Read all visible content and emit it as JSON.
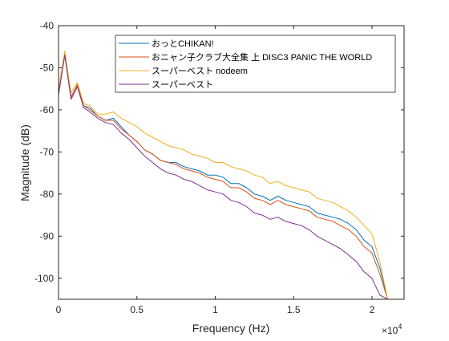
{
  "chart_data": {
    "type": "line",
    "title": "",
    "xlabel": "Frequency (Hz)",
    "ylabel": "Magnitude (dB)",
    "xlim": [
      0,
      22050
    ],
    "ylim": [
      -105,
      -40
    ],
    "x_ticks": [
      0,
      5000,
      10000,
      15000,
      20000
    ],
    "x_tick_labels": [
      "0",
      "0.5",
      "1",
      "1.5",
      "2"
    ],
    "x_exponent": "×10",
    "x_exponent_power": "4",
    "y_ticks": [
      -40,
      -50,
      -60,
      -70,
      -80,
      -90,
      -100
    ],
    "y_tick_labels": [
      "-40",
      "-50",
      "-60",
      "-70",
      "-80",
      "-90",
      "-100"
    ],
    "grid": false,
    "legend_position": "top-right",
    "series": [
      {
        "name": "おっとCHIKAN!",
        "color": "#0072BD",
        "x": [
          0,
          400,
          800,
          1200,
          1600,
          2000,
          2500,
          3000,
          3500,
          4000,
          4500,
          5000,
          5500,
          6000,
          6500,
          7000,
          7500,
          8000,
          8500,
          9000,
          9500,
          10000,
          10500,
          11000,
          11500,
          12000,
          12500,
          13000,
          13500,
          14000,
          14500,
          15000,
          15500,
          16000,
          16500,
          17000,
          17500,
          18000,
          18500,
          19000,
          19500,
          20000,
          20500,
          21000
        ],
        "y": [
          -56,
          -47,
          -57,
          -54,
          -59,
          -59.5,
          -61.5,
          -62.5,
          -62,
          -64,
          -66,
          -67.5,
          -69.5,
          -70.5,
          -72,
          -72.5,
          -72.5,
          -73.5,
          -74,
          -74.5,
          -75.5,
          -75.5,
          -76,
          -77.5,
          -77.5,
          -78.5,
          -80,
          -80.5,
          -81.5,
          -80.5,
          -81.5,
          -82,
          -82.5,
          -83,
          -84.5,
          -85,
          -85.5,
          -86,
          -87,
          -88.5,
          -91,
          -92.5,
          -97.5,
          -105
        ]
      },
      {
        "name": "おニャン子クラブ大全集 上 DISC3 PANIC THE WORLD",
        "color": "#D95319",
        "x": [
          0,
          400,
          800,
          1200,
          1600,
          2000,
          2500,
          3000,
          3500,
          4000,
          4500,
          5000,
          5500,
          6000,
          6500,
          7000,
          7500,
          8000,
          8500,
          9000,
          9500,
          10000,
          10500,
          11000,
          11500,
          12000,
          12500,
          13000,
          13500,
          14000,
          14500,
          15000,
          15500,
          16000,
          16500,
          17000,
          17500,
          18000,
          18500,
          19000,
          19500,
          20000,
          20500,
          21000
        ],
        "y": [
          -56,
          -46.5,
          -57,
          -54,
          -59,
          -60,
          -61.5,
          -62.5,
          -62.5,
          -64.5,
          -66,
          -67.5,
          -69.5,
          -70.5,
          -72,
          -72.5,
          -73,
          -74,
          -74.5,
          -75,
          -76,
          -76.5,
          -77,
          -78.5,
          -78.5,
          -79.5,
          -81,
          -81.5,
          -82.5,
          -81.5,
          -82.5,
          -83,
          -83.5,
          -84,
          -85.5,
          -86,
          -86.5,
          -87.5,
          -88.5,
          -90,
          -92.5,
          -94,
          -99,
          -105
        ]
      },
      {
        "name": "スーパーベスト nodeem",
        "color": "#EDB120",
        "x": [
          0,
          400,
          800,
          1200,
          1600,
          2000,
          2500,
          3000,
          3500,
          4000,
          4500,
          5000,
          5500,
          6000,
          6500,
          7000,
          7500,
          8000,
          8500,
          9000,
          9500,
          10000,
          10500,
          11000,
          11500,
          12000,
          12500,
          13000,
          13500,
          14000,
          14500,
          15000,
          15500,
          16000,
          16500,
          17000,
          17500,
          18000,
          18500,
          19000,
          19500,
          20000,
          20500,
          21000
        ],
        "y": [
          -55,
          -46,
          -56,
          -53.5,
          -58.5,
          -59,
          -61,
          -61,
          -60.5,
          -62,
          -63,
          -64,
          -65.5,
          -66.5,
          -67.5,
          -68.5,
          -69,
          -69.5,
          -70.5,
          -71,
          -71.5,
          -72.5,
          -72.5,
          -73.5,
          -74,
          -74.5,
          -75.5,
          -76,
          -77.5,
          -77,
          -78,
          -78.5,
          -79,
          -79.5,
          -81,
          -81.5,
          -82,
          -83,
          -84,
          -85.5,
          -87.5,
          -89.5,
          -96,
          -105
        ]
      },
      {
        "name": "スーパーベスト",
        "color": "#7E2F8E",
        "x": [
          0,
          400,
          800,
          1200,
          1600,
          2000,
          2500,
          3000,
          3500,
          4000,
          4500,
          5000,
          5500,
          6000,
          6500,
          7000,
          7500,
          8000,
          8500,
          9000,
          9500,
          10000,
          10500,
          11000,
          11500,
          12000,
          12500,
          13000,
          13500,
          14000,
          14500,
          15000,
          15500,
          16000,
          16500,
          17000,
          17500,
          18000,
          18500,
          19000,
          19500,
          20000,
          20500,
          21000
        ],
        "y": [
          -56.5,
          -47,
          -57.5,
          -54.5,
          -59.5,
          -60.5,
          -62,
          -63,
          -63.5,
          -65.5,
          -67,
          -69,
          -71,
          -72.5,
          -74,
          -75,
          -75.5,
          -76.5,
          -77,
          -78,
          -79,
          -79.5,
          -80,
          -81.5,
          -82,
          -83,
          -84.5,
          -85,
          -86,
          -85.5,
          -86.5,
          -87,
          -87.5,
          -88.5,
          -90,
          -91,
          -92,
          -93,
          -94.5,
          -96,
          -98.5,
          -100,
          -104,
          -105
        ]
      }
    ]
  }
}
